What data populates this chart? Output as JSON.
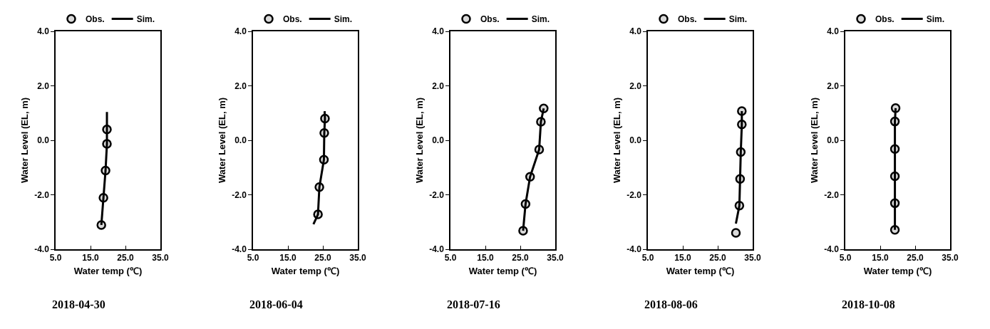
{
  "chart_data": [
    {
      "type": "scatter",
      "xlabel": "Water temp (℃)",
      "ylabel": "Water Level (EL, m)",
      "annotations": [
        "2018-04-30"
      ],
      "legend": "top",
      "xlim": [
        5,
        35
      ],
      "xticks": [
        {
          "value": 5,
          "label": "5.0"
        },
        {
          "value": 15,
          "label": "15.0"
        },
        {
          "value": 25,
          "label": "25.0"
        },
        {
          "value": 35,
          "label": "35.0"
        }
      ],
      "ylim": [
        -4,
        4
      ],
      "yticks": [
        {
          "value": -4,
          "label": "-4.0"
        },
        {
          "value": -2,
          "label": "-2.0"
        },
        {
          "value": 0,
          "label": "0.0"
        },
        {
          "value": 2,
          "label": "2.0"
        },
        {
          "value": 4,
          "label": "4.0"
        }
      ],
      "series": [
        {
          "name": "Obs.",
          "marker": "circle",
          "color": "#d9d9d9",
          "x": [
            19.7,
            19.7,
            19.3,
            18.7,
            18.1
          ],
          "values": [
            0.4,
            -0.13,
            -1.11,
            -2.11,
            -3.11
          ]
        },
        {
          "name": "Sim.",
          "type": "line",
          "line_style": "solid",
          "color": "#000000",
          "x": [
            19.7,
            19.7,
            19.7,
            19.3,
            18.7,
            18.1
          ],
          "values": [
            1.04,
            0.4,
            -0.13,
            -1.11,
            -2.11,
            -3.11
          ]
        }
      ]
    },
    {
      "type": "scatter",
      "xlabel": "Water temp (℃)",
      "ylabel": "Water Level (EL, m)",
      "annotations": [
        "2018-06-04"
      ],
      "legend": "top",
      "xlim": [
        5,
        35
      ],
      "xticks": [
        {
          "value": 5,
          "label": "5.0"
        },
        {
          "value": 15,
          "label": "15.0"
        },
        {
          "value": 25,
          "label": "25.0"
        },
        {
          "value": 35,
          "label": "35.0"
        }
      ],
      "ylim": [
        -4,
        4
      ],
      "yticks": [
        {
          "value": -4,
          "label": "-4.0"
        },
        {
          "value": -2,
          "label": "-2.0"
        },
        {
          "value": 0,
          "label": "0.0"
        },
        {
          "value": 2,
          "label": "2.0"
        },
        {
          "value": 4,
          "label": "4.0"
        }
      ],
      "series": [
        {
          "name": "Obs.",
          "marker": "circle",
          "color": "#d9d9d9",
          "x": [
            25.6,
            25.4,
            25.3,
            24.0,
            23.6
          ],
          "values": [
            0.8,
            0.27,
            -0.71,
            -1.72,
            -2.72
          ]
        },
        {
          "name": "Sim.",
          "type": "line",
          "line_style": "solid",
          "color": "#000000",
          "x": [
            25.5,
            25.6,
            25.4,
            25.3,
            24.0,
            23.6,
            22.3
          ],
          "values": [
            1.07,
            0.8,
            0.27,
            -0.71,
            -1.72,
            -2.72,
            -3.08
          ]
        }
      ]
    },
    {
      "type": "scatter",
      "xlabel": "Water temp (℃)",
      "ylabel": "Water Level (EL, m)",
      "annotations": [
        "2018-07-16"
      ],
      "legend": "top",
      "xlim": [
        5,
        35
      ],
      "xticks": [
        {
          "value": 5,
          "label": "5.0"
        },
        {
          "value": 15,
          "label": "15.0"
        },
        {
          "value": 25,
          "label": "25.0"
        },
        {
          "value": 35,
          "label": "35.0"
        }
      ],
      "ylim": [
        -4,
        4
      ],
      "yticks": [
        {
          "value": -4,
          "label": "-4.0"
        },
        {
          "value": -2,
          "label": "-2.0"
        },
        {
          "value": 0,
          "label": "0.0"
        },
        {
          "value": 2,
          "label": "2.0"
        },
        {
          "value": 4,
          "label": "4.0"
        }
      ],
      "series": [
        {
          "name": "Obs.",
          "marker": "circle",
          "color": "#d9d9d9",
          "x": [
            31.7,
            30.9,
            30.4,
            27.8,
            26.5,
            25.8
          ],
          "values": [
            1.17,
            0.68,
            -0.34,
            -1.34,
            -2.34,
            -3.32
          ]
        },
        {
          "name": "Sim.",
          "type": "line",
          "line_style": "solid",
          "color": "#000000",
          "x": [
            31.7,
            30.9,
            30.4,
            27.8,
            26.5,
            25.8
          ],
          "values": [
            1.17,
            0.68,
            -0.34,
            -1.34,
            -2.34,
            -3.32
          ]
        }
      ]
    },
    {
      "type": "scatter",
      "xlabel": "Water temp (℃)",
      "ylabel": "Water Level (EL, m)",
      "annotations": [
        "2018-08-06"
      ],
      "legend": "top",
      "xlim": [
        5,
        35
      ],
      "xticks": [
        {
          "value": 5,
          "label": "5.0"
        },
        {
          "value": 15,
          "label": "15.0"
        },
        {
          "value": 25,
          "label": "25.0"
        },
        {
          "value": 35,
          "label": "35.0"
        }
      ],
      "ylim": [
        -4,
        4
      ],
      "yticks": [
        {
          "value": -4,
          "label": "-4.0"
        },
        {
          "value": -2,
          "label": "-2.0"
        },
        {
          "value": 0,
          "label": "0.0"
        },
        {
          "value": 2,
          "label": "2.0"
        },
        {
          "value": 4,
          "label": "4.0"
        }
      ],
      "series": [
        {
          "name": "Obs.",
          "marker": "circle",
          "color": "#d9d9d9",
          "x": [
            31.9,
            31.9,
            31.6,
            31.4,
            31.2,
            30.2
          ],
          "values": [
            1.07,
            0.58,
            -0.43,
            -1.42,
            -2.4,
            -3.4
          ]
        },
        {
          "name": "Sim.",
          "type": "line",
          "line_style": "solid",
          "color": "#000000",
          "x": [
            31.9,
            31.9,
            31.6,
            31.4,
            31.2,
            30.2
          ],
          "values": [
            1.07,
            0.58,
            -0.43,
            -1.42,
            -2.4,
            -3.06
          ]
        }
      ]
    },
    {
      "type": "scatter",
      "xlabel": "Water temp (℃)",
      "ylabel": "Water Level (EL, m)",
      "annotations": [
        "2018-10-08"
      ],
      "legend": "top",
      "xlim": [
        5,
        35
      ],
      "xticks": [
        {
          "value": 5,
          "label": "5.0"
        },
        {
          "value": 15,
          "label": "15.0"
        },
        {
          "value": 25,
          "label": "25.0"
        },
        {
          "value": 35,
          "label": "35.0"
        }
      ],
      "ylim": [
        -4,
        4
      ],
      "yticks": [
        {
          "value": -4,
          "label": "-4.0"
        },
        {
          "value": -2,
          "label": "-2.0"
        },
        {
          "value": 0,
          "label": "0.0"
        },
        {
          "value": 2,
          "label": "2.0"
        },
        {
          "value": 4,
          "label": "4.0"
        }
      ],
      "series": [
        {
          "name": "Obs.",
          "marker": "circle",
          "color": "#d9d9d9",
          "x": [
            19.4,
            19.2,
            19.2,
            19.2,
            19.2,
            19.2
          ],
          "values": [
            1.18,
            0.69,
            -0.32,
            -1.32,
            -2.31,
            -3.29
          ]
        },
        {
          "name": "Sim.",
          "type": "line",
          "line_style": "solid",
          "color": "#000000",
          "x": [
            19.4,
            19.2,
            19.2,
            19.2,
            19.2,
            19.2
          ],
          "values": [
            1.18,
            0.69,
            -0.32,
            -1.32,
            -2.31,
            -3.29
          ]
        }
      ]
    }
  ]
}
